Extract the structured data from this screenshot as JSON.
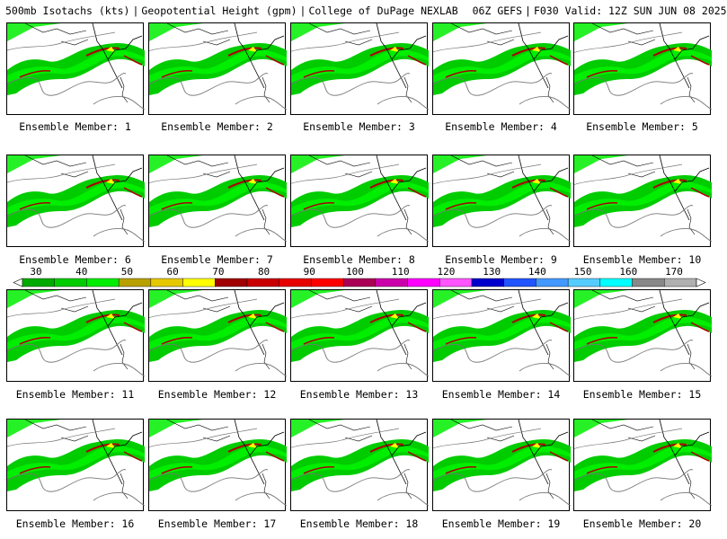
{
  "header": {
    "product": "500mb Isotachs (kts)",
    "field": "Geopotential Height (gpm)",
    "source": "College of DuPage NEXLAB",
    "run": "06Z GEFS",
    "valid": "F030 Valid: 12Z SUN JUN 08 2025"
  },
  "member_label_prefix": "Ensemble Member:",
  "members": [
    {
      "label": "Ensemble Member: 1"
    },
    {
      "label": "Ensemble Member: 2"
    },
    {
      "label": "Ensemble Member: 3"
    },
    {
      "label": "Ensemble Member: 4"
    },
    {
      "label": "Ensemble Member: 5"
    },
    {
      "label": "Ensemble Member: 6"
    },
    {
      "label": "Ensemble Member: 7"
    },
    {
      "label": "Ensemble Member: 8"
    },
    {
      "label": "Ensemble Member: 9"
    },
    {
      "label": "Ensemble Member: 10"
    },
    {
      "label": "Ensemble Member: 11"
    },
    {
      "label": "Ensemble Member: 12"
    },
    {
      "label": "Ensemble Member: 13"
    },
    {
      "label": "Ensemble Member: 14"
    },
    {
      "label": "Ensemble Member: 15"
    },
    {
      "label": "Ensemble Member: 16"
    },
    {
      "label": "Ensemble Member: 17"
    },
    {
      "label": "Ensemble Member: 18"
    },
    {
      "label": "Ensemble Member: 19"
    },
    {
      "label": "Ensemble Member: 20"
    }
  ],
  "colorbar": {
    "unit": "kts",
    "labels": [
      "30",
      "40",
      "50",
      "60",
      "70",
      "80",
      "90",
      "100",
      "110",
      "120",
      "130",
      "140",
      "150",
      "160",
      "170"
    ],
    "colors": [
      "#00aa00",
      "#00cc00",
      "#00ee00",
      "#b8a000",
      "#e6c800",
      "#ffff00",
      "#a00000",
      "#c80000",
      "#e60000",
      "#ff0000",
      "#aa0055",
      "#cc00aa",
      "#ff00ff",
      "#ff55ff",
      "#0000cc",
      "#2255ff",
      "#4499ff",
      "#55ccff",
      "#00ffff",
      "#888888",
      "#b0b0b0"
    ]
  },
  "map_colors": {
    "jet_low": "#00cc00",
    "jet_mid": "#00ee00",
    "jet_core": "#aa0000",
    "jet_core2": "#ffff00",
    "height_contour": "#777777",
    "boundaries": "#000000"
  }
}
